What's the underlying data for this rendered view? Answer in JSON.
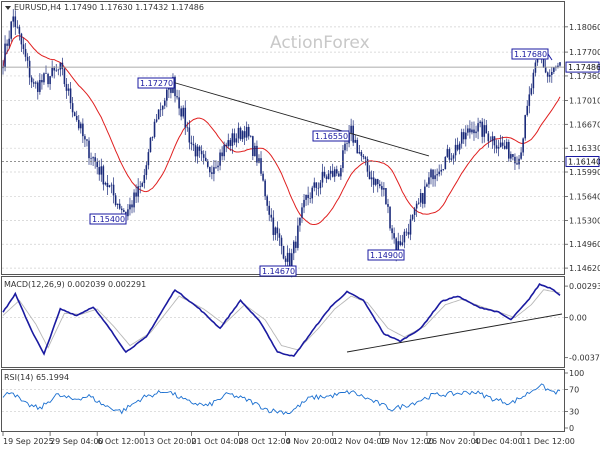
{
  "header": {
    "symbol": "EURUSD,H4",
    "ohlc": "1.17490 1.17630 1.17432 1.17486"
  },
  "watermark": "ActionForex",
  "colors": {
    "candle": "#1a2a7a",
    "ma": "#e02020",
    "macd": "#1a1aa0",
    "signal": "#b8b8b8",
    "rsi": "#1a6fd0",
    "label": "#1a1aa0"
  },
  "chart_data": [
    {
      "type": "candlestick",
      "title": "EURUSD,H4",
      "ylim": [
        1.1455,
        1.184
      ],
      "y_ticks": [
        "1.18060",
        "1.17700",
        "1.17360",
        "1.17010",
        "1.16670",
        "1.16330",
        "1.15990",
        "1.15640",
        "1.15300",
        "1.14960",
        "1.14620"
      ],
      "current_price": "1.17486",
      "level_line": "1.16140",
      "annotations": [
        "1.17270",
        "1.16550",
        "1.17680",
        "1.15400",
        "1.14670",
        "1.14900"
      ],
      "moving_average_color": "#e02020",
      "trendline": true,
      "anchors": [
        {
          "x": 0,
          "y": 1.176
        },
        {
          "x": 5,
          "y": 1.182
        },
        {
          "x": 15,
          "y": 1.172
        },
        {
          "x": 28,
          "y": 1.1745
        },
        {
          "x": 40,
          "y": 1.164
        },
        {
          "x": 55,
          "y": 1.156
        },
        {
          "x": 60,
          "y": 1.154
        },
        {
          "x": 68,
          "y": 1.158
        },
        {
          "x": 75,
          "y": 1.168
        },
        {
          "x": 83,
          "y": 1.1727
        },
        {
          "x": 92,
          "y": 1.164
        },
        {
          "x": 100,
          "y": 1.16
        },
        {
          "x": 110,
          "y": 1.164
        },
        {
          "x": 118,
          "y": 1.166
        },
        {
          "x": 124,
          "y": 1.162
        },
        {
          "x": 132,
          "y": 1.152
        },
        {
          "x": 140,
          "y": 1.1467
        },
        {
          "x": 148,
          "y": 1.156
        },
        {
          "x": 156,
          "y": 1.159
        },
        {
          "x": 164,
          "y": 1.16
        },
        {
          "x": 170,
          "y": 1.1655
        },
        {
          "x": 178,
          "y": 1.16
        },
        {
          "x": 186,
          "y": 1.157
        },
        {
          "x": 192,
          "y": 1.149
        },
        {
          "x": 200,
          "y": 1.153
        },
        {
          "x": 210,
          "y": 1.16
        },
        {
          "x": 220,
          "y": 1.163
        },
        {
          "x": 230,
          "y": 1.1665
        },
        {
          "x": 238,
          "y": 1.165
        },
        {
          "x": 246,
          "y": 1.163
        },
        {
          "x": 252,
          "y": 1.162
        },
        {
          "x": 258,
          "y": 1.172
        },
        {
          "x": 262,
          "y": 1.1768
        },
        {
          "x": 266,
          "y": 1.1735
        },
        {
          "x": 272,
          "y": 1.175
        }
      ]
    },
    {
      "type": "line",
      "title": "MACD(12,26,9) 0.002039 0.002291",
      "ylim": [
        -0.0045,
        0.0035
      ],
      "y_ticks": [
        "0.002933",
        "0.00",
        "-0.003724"
      ],
      "series": [
        {
          "name": "MACD",
          "anchors": [
            {
              "x": 0,
              "y": 0.0005
            },
            {
              "x": 6,
              "y": 0.0022
            },
            {
              "x": 14,
              "y": -0.0012
            },
            {
              "x": 20,
              "y": -0.0034
            },
            {
              "x": 28,
              "y": 0.0008
            },
            {
              "x": 36,
              "y": 0.0002
            },
            {
              "x": 44,
              "y": 0.001
            },
            {
              "x": 52,
              "y": -0.001
            },
            {
              "x": 60,
              "y": -0.0032
            },
            {
              "x": 70,
              "y": -0.0018
            },
            {
              "x": 84,
              "y": 0.0026
            },
            {
              "x": 96,
              "y": 0.0008
            },
            {
              "x": 106,
              "y": -0.001
            },
            {
              "x": 116,
              "y": 0.0016
            },
            {
              "x": 126,
              "y": -0.0005
            },
            {
              "x": 134,
              "y": -0.0032
            },
            {
              "x": 142,
              "y": -0.0036
            },
            {
              "x": 152,
              "y": -0.001
            },
            {
              "x": 160,
              "y": 0.001
            },
            {
              "x": 168,
              "y": 0.0024
            },
            {
              "x": 176,
              "y": 0.0016
            },
            {
              "x": 186,
              "y": -0.0015
            },
            {
              "x": 194,
              "y": -0.0022
            },
            {
              "x": 204,
              "y": -0.001
            },
            {
              "x": 214,
              "y": 0.0015
            },
            {
              "x": 222,
              "y": 0.002
            },
            {
              "x": 232,
              "y": 0.001
            },
            {
              "x": 242,
              "y": 0.0005
            },
            {
              "x": 248,
              "y": -0.0002
            },
            {
              "x": 256,
              "y": 0.0015
            },
            {
              "x": 262,
              "y": 0.0031
            },
            {
              "x": 268,
              "y": 0.0027
            },
            {
              "x": 272,
              "y": 0.0021
            }
          ]
        },
        {
          "name": "Signal",
          "anchors": [
            {
              "x": 0,
              "y": 0.0002
            },
            {
              "x": 8,
              "y": 0.0016
            },
            {
              "x": 16,
              "y": -0.0006
            },
            {
              "x": 22,
              "y": -0.0028
            },
            {
              "x": 30,
              "y": 0.0004
            },
            {
              "x": 38,
              "y": 0.0003
            },
            {
              "x": 46,
              "y": 0.0008
            },
            {
              "x": 54,
              "y": -0.0008
            },
            {
              "x": 62,
              "y": -0.0026
            },
            {
              "x": 72,
              "y": -0.0014
            },
            {
              "x": 86,
              "y": 0.002
            },
            {
              "x": 98,
              "y": 0.0008
            },
            {
              "x": 108,
              "y": -0.0006
            },
            {
              "x": 118,
              "y": 0.0012
            },
            {
              "x": 128,
              "y": -0.0002
            },
            {
              "x": 136,
              "y": -0.0026
            },
            {
              "x": 144,
              "y": -0.003
            },
            {
              "x": 154,
              "y": -0.001
            },
            {
              "x": 162,
              "y": 0.0008
            },
            {
              "x": 170,
              "y": 0.002
            },
            {
              "x": 178,
              "y": 0.0014
            },
            {
              "x": 188,
              "y": -0.001
            },
            {
              "x": 196,
              "y": -0.0018
            },
            {
              "x": 206,
              "y": -0.0008
            },
            {
              "x": 216,
              "y": 0.0012
            },
            {
              "x": 224,
              "y": 0.0017
            },
            {
              "x": 234,
              "y": 0.001
            },
            {
              "x": 244,
              "y": 0.0004
            },
            {
              "x": 250,
              "y": 0.0
            },
            {
              "x": 258,
              "y": 0.0012
            },
            {
              "x": 264,
              "y": 0.0026
            },
            {
              "x": 272,
              "y": 0.0023
            }
          ]
        }
      ],
      "trendline": true
    },
    {
      "type": "line",
      "title": "RSI(14) 65.1994",
      "ylim": [
        0,
        100
      ],
      "y_ticks": [
        "100",
        "70",
        "30",
        "0"
      ],
      "series": [
        {
          "name": "RSI",
          "anchors": [
            {
              "x": 0,
              "y": 55
            },
            {
              "x": 4,
              "y": 68
            },
            {
              "x": 10,
              "y": 45
            },
            {
              "x": 18,
              "y": 35
            },
            {
              "x": 26,
              "y": 60
            },
            {
              "x": 34,
              "y": 52
            },
            {
              "x": 42,
              "y": 58
            },
            {
              "x": 50,
              "y": 40
            },
            {
              "x": 58,
              "y": 30
            },
            {
              "x": 68,
              "y": 55
            },
            {
              "x": 80,
              "y": 68
            },
            {
              "x": 90,
              "y": 48
            },
            {
              "x": 100,
              "y": 40
            },
            {
              "x": 110,
              "y": 62
            },
            {
              "x": 120,
              "y": 50
            },
            {
              "x": 130,
              "y": 32
            },
            {
              "x": 140,
              "y": 28
            },
            {
              "x": 150,
              "y": 55
            },
            {
              "x": 160,
              "y": 58
            },
            {
              "x": 170,
              "y": 66
            },
            {
              "x": 180,
              "y": 50
            },
            {
              "x": 190,
              "y": 34
            },
            {
              "x": 200,
              "y": 45
            },
            {
              "x": 210,
              "y": 60
            },
            {
              "x": 220,
              "y": 62
            },
            {
              "x": 230,
              "y": 66
            },
            {
              "x": 240,
              "y": 52
            },
            {
              "x": 248,
              "y": 45
            },
            {
              "x": 256,
              "y": 62
            },
            {
              "x": 262,
              "y": 78
            },
            {
              "x": 268,
              "y": 66
            },
            {
              "x": 272,
              "y": 65
            }
          ]
        }
      ]
    }
  ],
  "x_axis": {
    "labels": [
      "19 Sep 2025",
      "29 Sep 04:00",
      "6 Oct 12:00",
      "13 Oct 20:00",
      "21 Oct 04:00",
      "28 Oct 12:00",
      "4 Nov 20:00",
      "12 Nov 04:00",
      "19 Nov 12:00",
      "26 Nov 20:00",
      "4 Dec 04:00",
      "11 Dec 12:00"
    ]
  }
}
